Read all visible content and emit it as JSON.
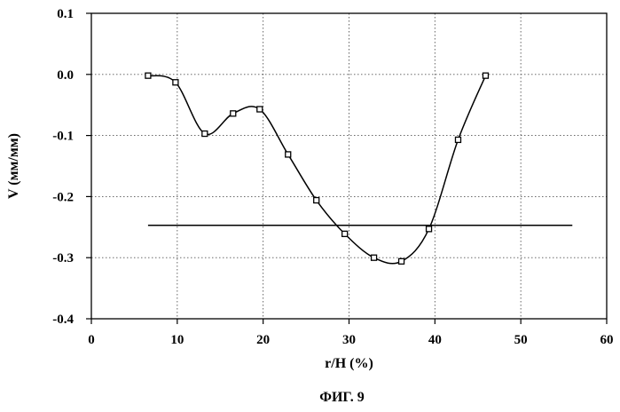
{
  "chart_data": {
    "type": "line",
    "xlabel": "r/H (%)",
    "ylabel": "V (мм/мм)",
    "caption": "ФИГ. 9",
    "xlim": [
      0,
      60
    ],
    "ylim": [
      -0.4,
      0.1
    ],
    "xticks": [
      "0",
      "10",
      "20",
      "30",
      "40",
      "50",
      "60"
    ],
    "yticks": [
      "0.1",
      "0.0",
      "-0.1",
      "-0.2",
      "-0.3",
      "-0.4"
    ],
    "grid": true,
    "series": [
      {
        "smooth": true,
        "marker": "square",
        "x": [
          6.6,
          9.8,
          13.2,
          16.5,
          19.6,
          22.9,
          26.2,
          29.5,
          32.9,
          36.1,
          39.3,
          42.7,
          45.9
        ],
        "y": [
          -0.002,
          -0.013,
          -0.097,
          -0.064,
          -0.057,
          -0.131,
          -0.206,
          -0.261,
          -0.3,
          -0.306,
          -0.253,
          -0.107,
          -0.002
        ]
      },
      {
        "smooth": false,
        "marker": "none",
        "x": [
          6.6,
          56.0
        ],
        "y": [
          -0.247,
          -0.247
        ]
      }
    ]
  }
}
